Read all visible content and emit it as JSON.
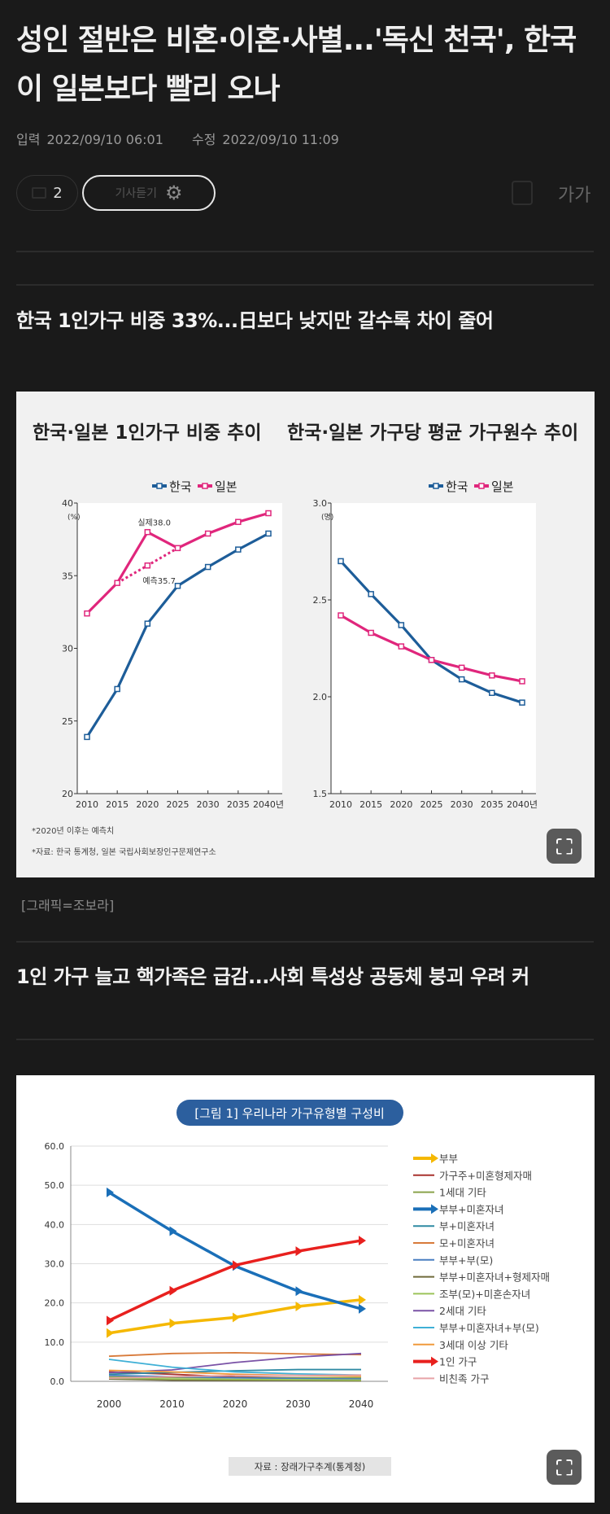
{
  "article": {
    "title": "성인 절반은 비혼·이혼·사별...'독신 천국', 한국이 일본보다 빨리 오나",
    "meta": {
      "input_label": "입력",
      "input_time": "2022/09/10 06:01",
      "edit_label": "수정",
      "edit_time": "2022/09/10 11:09"
    },
    "toolbar": {
      "comment_count": "2",
      "listen_label": "기사듣기",
      "font_size_label": "가가"
    },
    "subheading1": "한국 1인가구 비중 33%...日보다 낮지만 갈수록 차이 줄어",
    "caption1": "[그래픽=조보라]",
    "subheading2": "1인 가구 늘고 핵가족은 급감...사회 특성상 공동체 붕괴 우려 커"
  },
  "colors": {
    "korea": "#1d5d99",
    "japan": "#e0267c",
    "background": "#1a1a1a"
  },
  "icons": [
    "comment-icon",
    "gear-icon",
    "share-icon",
    "font-size-icon",
    "expand-icon"
  ],
  "chart_data": [
    {
      "type": "line",
      "title": "한국·일본 1인가구 비중 추이",
      "ylabel": "(%)",
      "x": [
        2010,
        2015,
        2020,
        2025,
        2030,
        2035,
        2040
      ],
      "xtick_labels": [
        "2010",
        "2015",
        "2020",
        "2025",
        "2030",
        "2035",
        "2040년"
      ],
      "ylim": [
        20,
        40
      ],
      "yticks": [
        20,
        25,
        30,
        35,
        40
      ],
      "series": [
        {
          "name": "한국",
          "values": [
            23.9,
            27.2,
            31.7,
            34.3,
            35.6,
            36.8,
            37.9
          ]
        },
        {
          "name": "일본",
          "values": [
            32.4,
            34.5,
            38.0,
            36.9,
            37.9,
            38.7,
            39.3
          ]
        }
      ],
      "forecast_line": {
        "x": [
          2015,
          2020,
          2025
        ],
        "values": [
          34.5,
          35.7,
          36.9
        ]
      },
      "annotations": [
        "실제38.0",
        "예측35.7"
      ],
      "legend": "top-right",
      "footnotes": [
        "*2020년 이후는 예측치",
        "*자료: 한국 통계청, 일본 국립사회보장인구문제연구소"
      ]
    },
    {
      "type": "line",
      "title": "한국·일본 가구당 평균 가구원수 추이",
      "ylabel": "(명)",
      "x": [
        2010,
        2015,
        2020,
        2025,
        2030,
        2035,
        2040
      ],
      "xtick_labels": [
        "2010",
        "2015",
        "2020",
        "2025",
        "2030",
        "2035",
        "2040년"
      ],
      "ylim": [
        1.5,
        3.0
      ],
      "yticks": [
        "1.5",
        "2.0",
        "2.5",
        "3.0"
      ],
      "series": [
        {
          "name": "한국",
          "values": [
            2.7,
            2.53,
            2.37,
            2.19,
            2.09,
            2.02,
            1.97
          ]
        },
        {
          "name": "일본",
          "values": [
            2.42,
            2.33,
            2.26,
            2.19,
            2.15,
            2.11,
            2.08
          ]
        }
      ],
      "legend": "top-right"
    },
    {
      "type": "line",
      "title": "[그림 1] 우리나라 가구유형별 구성비",
      "x": [
        2000,
        2010,
        2020,
        2030,
        2040
      ],
      "xtick_labels": [
        "2000",
        "2010",
        "2020",
        "2030",
        "2040"
      ],
      "ylim": [
        0,
        60
      ],
      "yticks": [
        "0.0",
        "10.0",
        "20.0",
        "30.0",
        "40.0",
        "50.0",
        "60.0"
      ],
      "grid": true,
      "legend": "right",
      "source": "자료 : 장래가구추계(통계청)",
      "series": [
        {
          "name": "부부",
          "color": "#f5b800",
          "values": [
            12.3,
            14.8,
            16.3,
            19.1,
            20.8
          ],
          "arrow": true
        },
        {
          "name": "가구주+미혼형제자매",
          "color": "#a8322d",
          "values": [
            2.4,
            1.8,
            1.1,
            0.9,
            0.8
          ]
        },
        {
          "name": "1세대 기타",
          "color": "#8aa34a",
          "values": [
            1.1,
            1.0,
            0.9,
            0.9,
            0.9
          ]
        },
        {
          "name": "부부+미혼자녀",
          "color": "#1a6fb8",
          "values": [
            48.2,
            38.3,
            29.4,
            23.0,
            18.5
          ],
          "arrow": true
        },
        {
          "name": "부+미혼자녀",
          "color": "#2f8aa3",
          "values": [
            1.8,
            2.3,
            2.7,
            3.0,
            3.0
          ]
        },
        {
          "name": "모+미혼자녀",
          "color": "#d87a3a",
          "values": [
            6.4,
            7.1,
            7.3,
            7.0,
            6.8
          ]
        },
        {
          "name": "부부+부(모)",
          "color": "#4a7fc1",
          "values": [
            1.5,
            1.2,
            0.9,
            0.7,
            0.6
          ]
        },
        {
          "name": "부부+미혼자녀+형제자매",
          "color": "#6f6a3a",
          "values": [
            0.6,
            0.3,
            0.2,
            0.2,
            0.1
          ]
        },
        {
          "name": "조부(모)+미혼손자녀",
          "color": "#9cc45a",
          "values": [
            0.8,
            0.6,
            0.5,
            0.4,
            0.3
          ]
        },
        {
          "name": "2세대 기타",
          "color": "#7a52a6",
          "values": [
            2.2,
            2.9,
            4.8,
            6.2,
            7.1
          ]
        },
        {
          "name": "부부+미혼자녀+부(모)",
          "color": "#3fb0d6",
          "values": [
            5.6,
            3.6,
            2.4,
            1.9,
            1.6
          ]
        },
        {
          "name": "3세대 이상 기타",
          "color": "#f09a3c",
          "values": [
            2.8,
            2.4,
            1.8,
            1.5,
            1.3
          ]
        },
        {
          "name": "1인 가구",
          "color": "#e8201e",
          "values": [
            15.5,
            23.1,
            29.6,
            33.2,
            35.9
          ],
          "arrow": true
        },
        {
          "name": "비친족 가구",
          "color": "#e8a3a8",
          "values": [
            0.8,
            1.2,
            1.5,
            1.5,
            1.6
          ]
        }
      ]
    }
  ]
}
